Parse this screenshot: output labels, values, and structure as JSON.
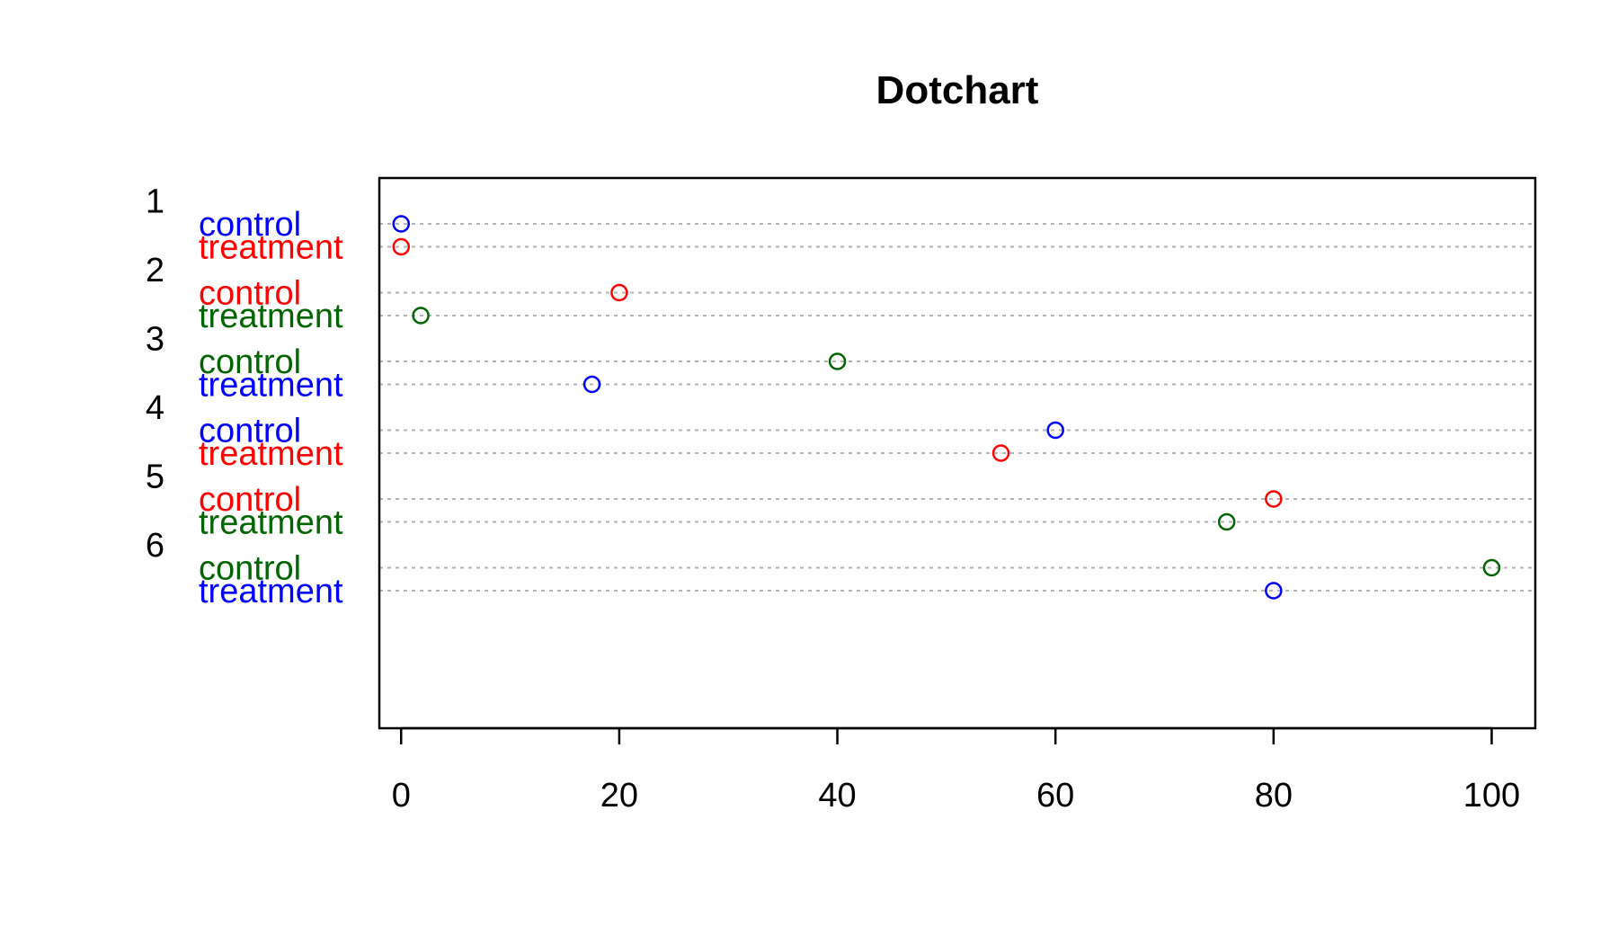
{
  "chart_data": {
    "type": "scatter",
    "title": "Dotchart",
    "xlabel": "",
    "ylabel": "",
    "xlim": [
      -2,
      104
    ],
    "x_ticks": [
      0,
      20,
      40,
      60,
      80,
      100
    ],
    "grid": "dotted row lines",
    "groups": [
      {
        "label": "1",
        "rows": [
          {
            "label": "control",
            "value": 0,
            "color": "#0000ff"
          },
          {
            "label": "treatment",
            "value": 0,
            "color": "#ff0000"
          }
        ]
      },
      {
        "label": "2",
        "rows": [
          {
            "label": "control",
            "value": 20,
            "color": "#ff0000"
          },
          {
            "label": "treatment",
            "value": 1.8,
            "color": "#006400"
          }
        ]
      },
      {
        "label": "3",
        "rows": [
          {
            "label": "control",
            "value": 40,
            "color": "#006400"
          },
          {
            "label": "treatment",
            "value": 17.5,
            "color": "#0000ff"
          }
        ]
      },
      {
        "label": "4",
        "rows": [
          {
            "label": "control",
            "value": 60,
            "color": "#0000ff"
          },
          {
            "label": "treatment",
            "value": 55,
            "color": "#ff0000"
          }
        ]
      },
      {
        "label": "5",
        "rows": [
          {
            "label": "control",
            "value": 80,
            "color": "#ff0000"
          },
          {
            "label": "treatment",
            "value": 75.7,
            "color": "#006400"
          }
        ]
      },
      {
        "label": "6",
        "rows": [
          {
            "label": "control",
            "value": 100,
            "color": "#006400"
          },
          {
            "label": "treatment",
            "value": 80,
            "color": "#0000ff"
          }
        ]
      }
    ]
  }
}
